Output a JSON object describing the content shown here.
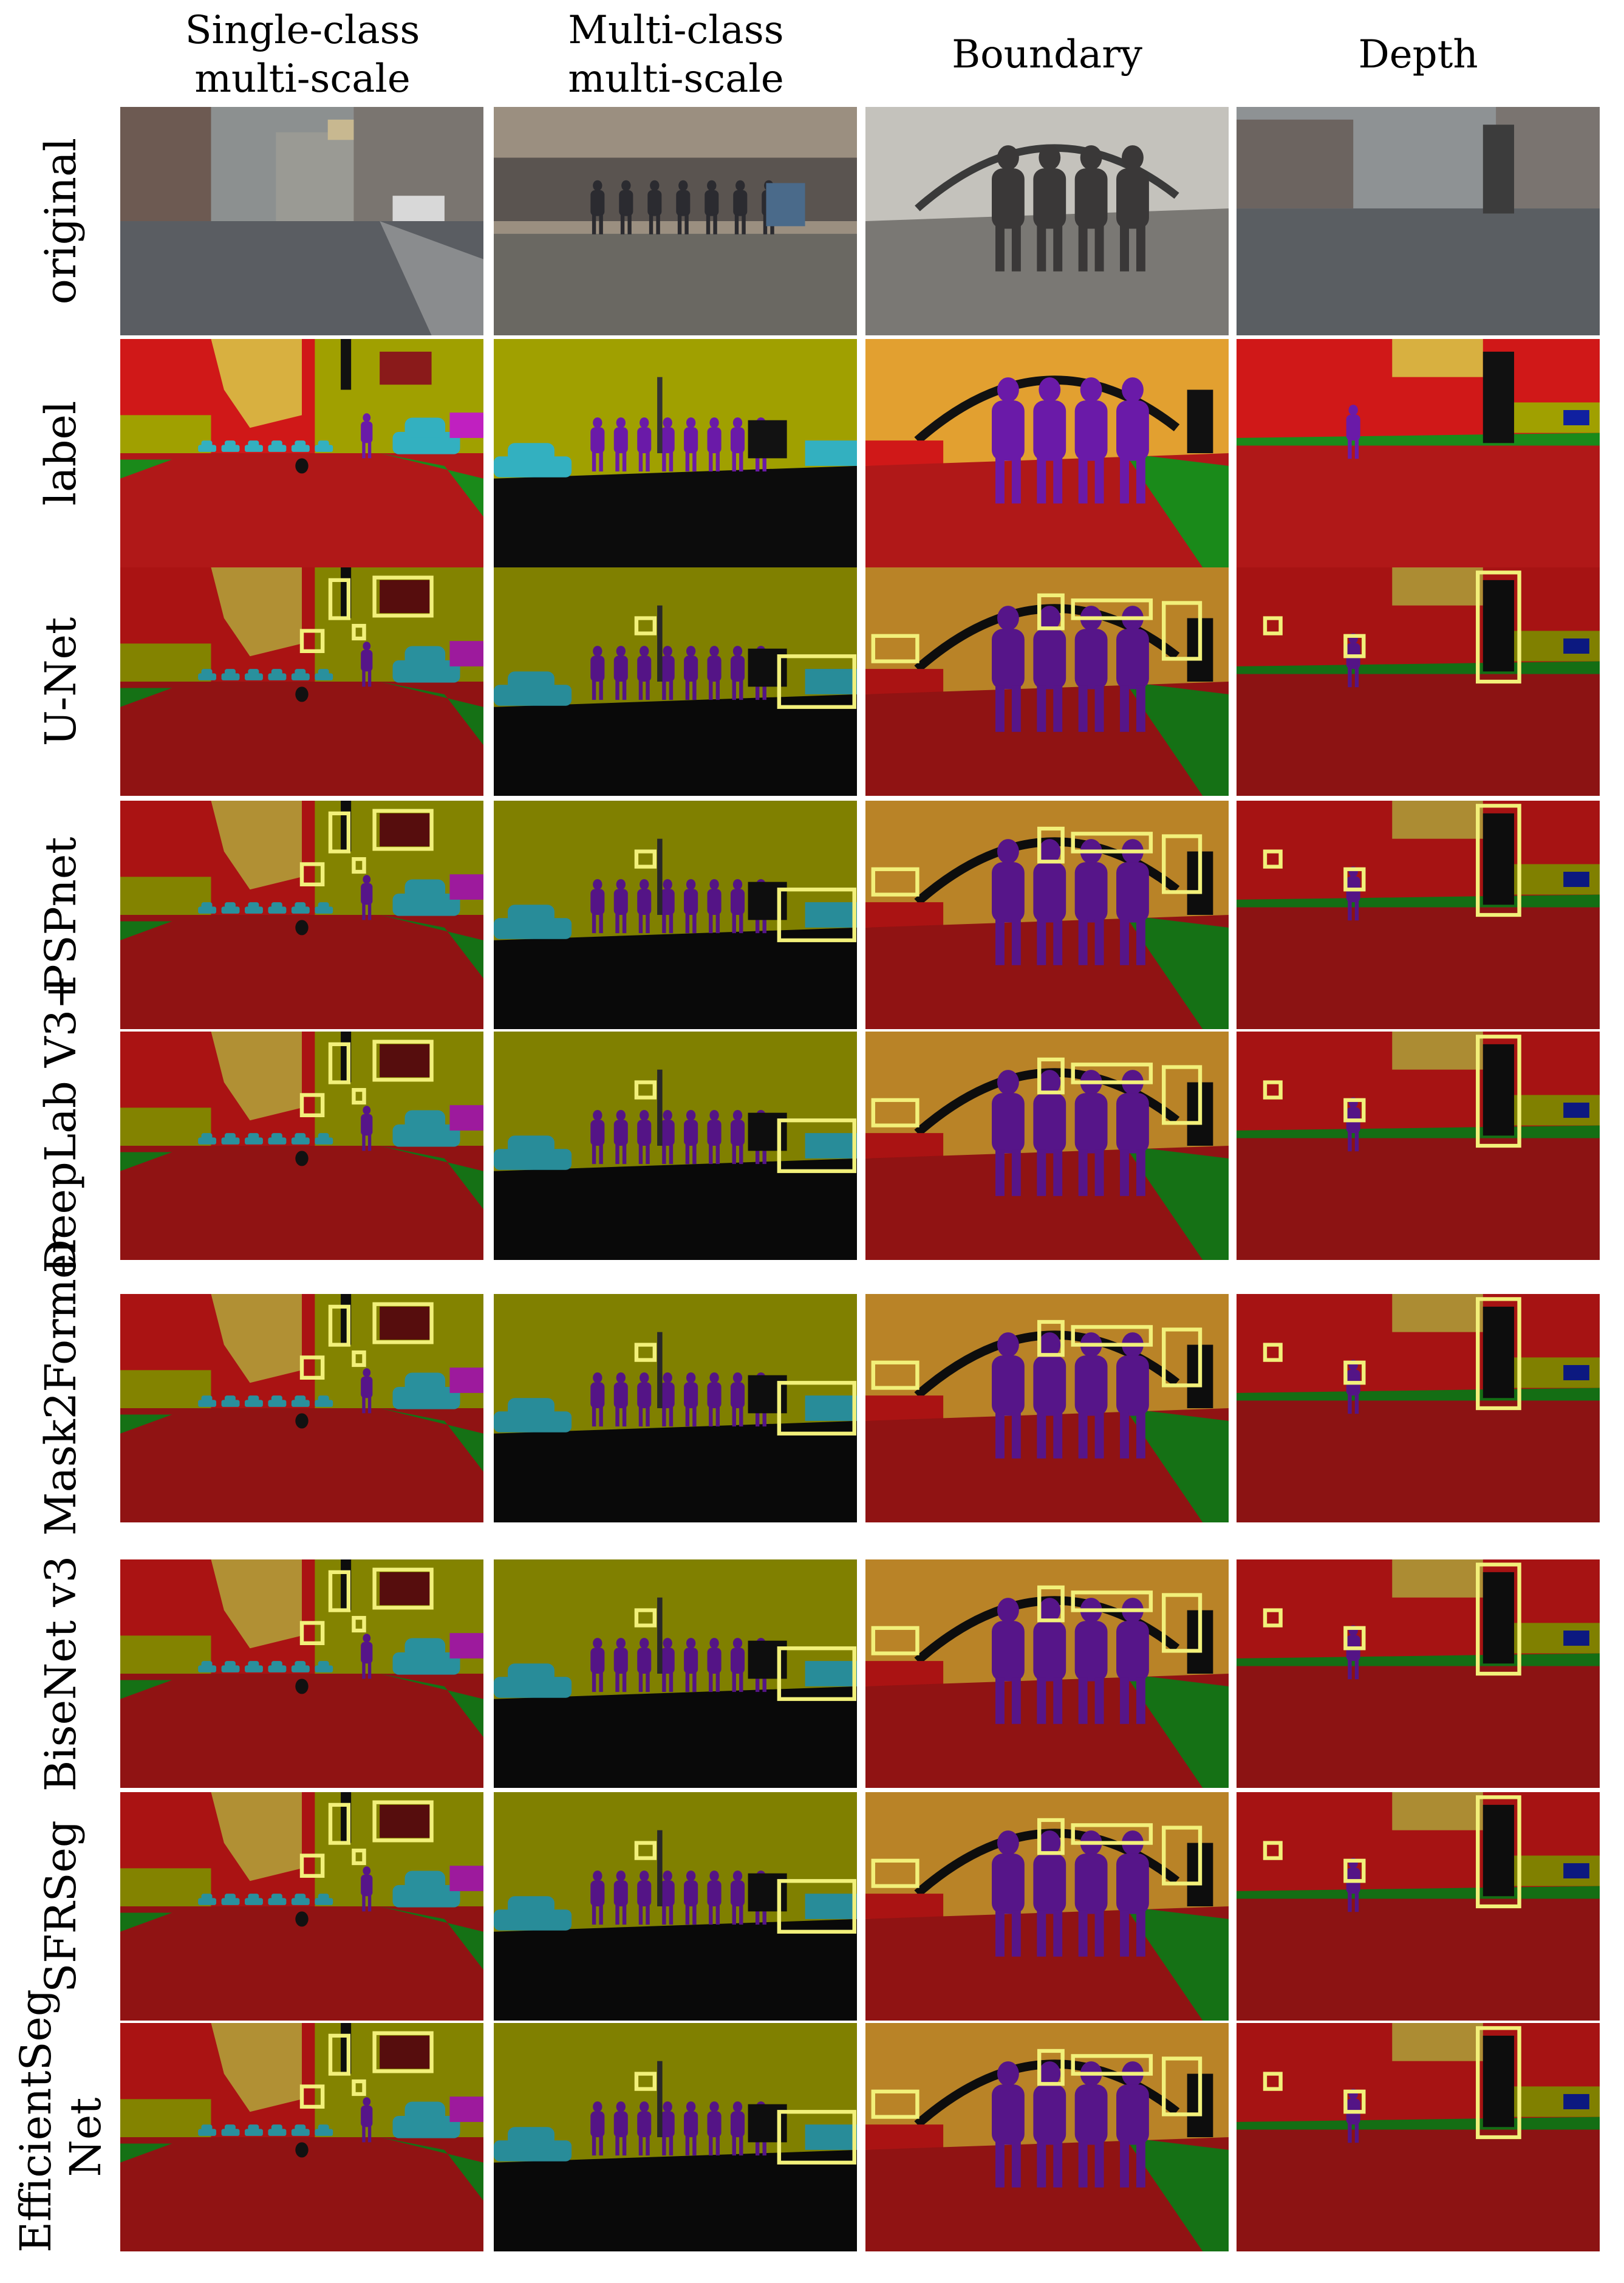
{
  "columns": [
    {
      "title": "Single-class multi-scale"
    },
    {
      "title": "Multi-class multi-scale"
    },
    {
      "title": "Boundary"
    },
    {
      "title": "Depth"
    }
  ],
  "rows": [
    {
      "label": "original",
      "kind": "photo"
    },
    {
      "label": "label",
      "kind": "label"
    },
    {
      "label": "U-Net",
      "kind": "pred"
    },
    {
      "label": "PSPnet",
      "kind": "pred"
    },
    {
      "label": "DeepLab V3+",
      "kind": "pred"
    },
    {
      "label": "Mask2Former",
      "kind": "pred"
    },
    {
      "label": "BiseNet v3",
      "kind": "pred"
    },
    {
      "label": "SFRSeg",
      "kind": "pred"
    },
    {
      "label": "EfficientSeg Net",
      "kind": "pred"
    }
  ],
  "colors": {
    "road": "#b01818",
    "building": "#d8b040",
    "vegetation": "#d01818",
    "wall": "#a0a000",
    "sidewalk": "#1a8a1a",
    "car": "#33b0c0",
    "person": "#6a1aa8",
    "truck": "#111111",
    "sky": "#e2a030",
    "box": "#f2f07a",
    "magenta": "#c020c0"
  }
}
